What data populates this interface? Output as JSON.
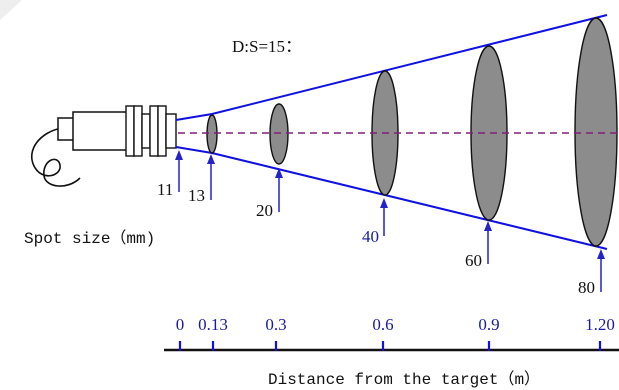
{
  "ratio_label": "D:S=15：",
  "spot_size_label": "Spot size（mm)",
  "distance_label": "Distance from the target（m）",
  "spot_sizes": [
    "11",
    "13",
    "20",
    "40",
    "60",
    "80"
  ],
  "distances": [
    "0",
    "0.13",
    "0.3",
    "0.6",
    "0.9",
    "1.20"
  ],
  "colors": {
    "beam": "#1010e0",
    "axis_labels": "#1a1aa0",
    "spot_fill": "#8c8c8c",
    "centerline": "#80207a",
    "marker": "#2323c8"
  }
}
